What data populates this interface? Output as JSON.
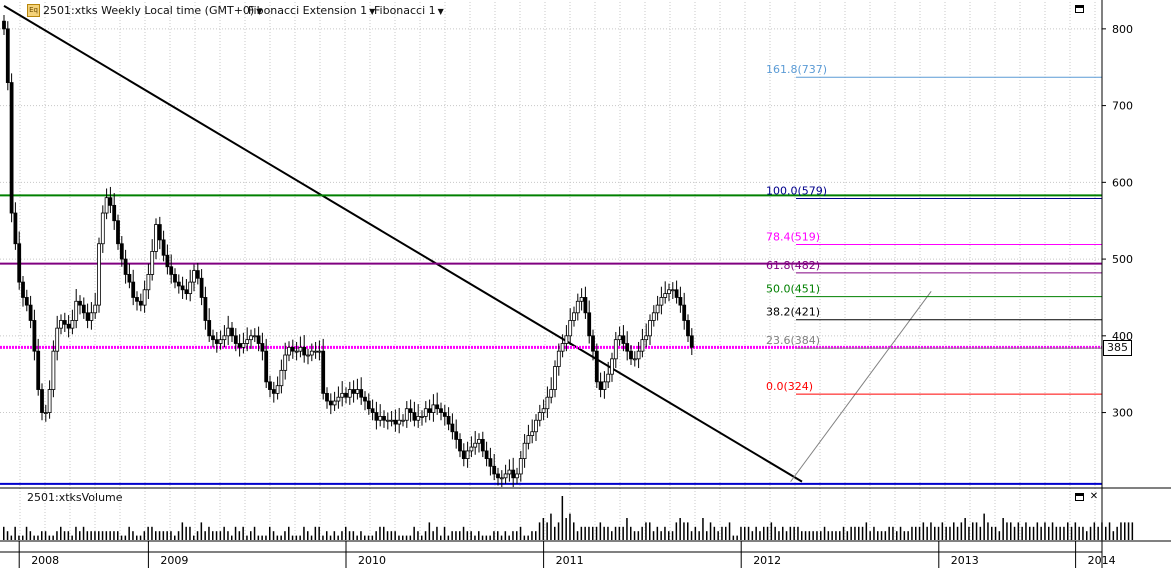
{
  "header": {
    "symbol_icon": "chart-badge-icon",
    "symbol_icon_glyph": "Eq",
    "title": "2501:xtks Weekly Local time (GMT+0)",
    "study_1": "Fibonacci Extension 1",
    "study_2": "Fibonacci 1"
  },
  "volume_panel": {
    "title": "2501:xtksVolume",
    "weekly_volume_relative": [
      0.3,
      0.2,
      0.1,
      0.3,
      0.1,
      0.1,
      0.3,
      0.2,
      0.1,
      0.1,
      0.2,
      0.2,
      0.1,
      0.1,
      0.2,
      0.3,
      0.2,
      0.2,
      0.1,
      0.3,
      0.2,
      0.3,
      0.2,
      0.2,
      0.2,
      0.2,
      0.2,
      0.2,
      0.2,
      0.2,
      0.2,
      0.1,
      0.1,
      0.3,
      0.2,
      0.1,
      0.1,
      0.2,
      0.3,
      0.3,
      0.2,
      0.2,
      0.2,
      0.2,
      0.2,
      0.1,
      0.2,
      0.4,
      0.3,
      0.3,
      0.1,
      0.2,
      0.4,
      0.2,
      0.3,
      0.2,
      0.2,
      0.2,
      0.3,
      0.2,
      0.1,
      0.3,
      0.2,
      0.3,
      0.1,
      0.2,
      0.3,
      0.1,
      0.1,
      0.1,
      0.3,
      0.2,
      0.1,
      0.1,
      0.2,
      0.3,
      0.1,
      0.1,
      0.1,
      0.3,
      0.2,
      0.1,
      0.3,
      0.3,
      0.1,
      0.2,
      0.1,
      0.2,
      0.1,
      0.2,
      0.3,
      0.2,
      0.2,
      0.1,
      0.2,
      0.1,
      0.1,
      0.1,
      0.2,
      0.3,
      0.3,
      0.2,
      0.2,
      0.2,
      0.1,
      0.1,
      0.1,
      0.1,
      0.3,
      0.2,
      0.1,
      0.2,
      0.4,
      0.2,
      0.3,
      0.1,
      0.3,
      0.1,
      0.2,
      0.2,
      0.2,
      0.3,
      0.2,
      0.2,
      0.1,
      0.2,
      0.1,
      0.1,
      0.1,
      0.2,
      0.2,
      0.1,
      0.2,
      0.1,
      0.2,
      0.2,
      0.3,
      0.1,
      0.1,
      0.2,
      0.2,
      0.4,
      0.5,
      0.4,
      0.6,
      0.3,
      0.4,
      1.0,
      0.5,
      0.6,
      0.4,
      0.2,
      0.3,
      0.3,
      0.3,
      0.3,
      0.3,
      0.4,
      0.3,
      0.3,
      0.2,
      0.3,
      0.3,
      0.3,
      0.5,
      0.3,
      0.2,
      0.2,
      0.3,
      0.4,
      0.4,
      0.2,
      0.3,
      0.2,
      0.3,
      0.2,
      0.2,
      0.4,
      0.5,
      0.4,
      0.4,
      0.2,
      0.3,
      0.2,
      0.5,
      0.2,
      0.4,
      0.3,
      0.2,
      0.3,
      0.3,
      0.4,
      0.1,
      0.1,
      0.3,
      0.3,
      0.3,
      0.2,
      0.3,
      0.2,
      0.3,
      0.3,
      0.4,
      0.3,
      0.2,
      0.3,
      0.2,
      0.3,
      0.3,
      0.3,
      0.2,
      0.2,
      0.2,
      0.2,
      0.2,
      0.2,
      0.3,
      0.2,
      0.2,
      0.2,
      0.2,
      0.3,
      0.2,
      0.3,
      0.3,
      0.3,
      0.3,
      0.4,
      0.2,
      0.3,
      0.2,
      0.2,
      0.2,
      0.3,
      0.3,
      0.2,
      0.3,
      0.2,
      0.2,
      0.3,
      0.3,
      0.3,
      0.4,
      0.3,
      0.4,
      0.3,
      0.3,
      0.4,
      0.3,
      0.3,
      0.4,
      0.3,
      0.4,
      0.5,
      0.3,
      0.4,
      0.4,
      0.3,
      0.6,
      0.4,
      0.3,
      0.3,
      0.2,
      0.5,
      0.4,
      0.4,
      0.3,
      0.4,
      0.3,
      0.4,
      0.3,
      0.3,
      0.4,
      0.3,
      0.4,
      0.3,
      0.4,
      0.3,
      0.3,
      0.3,
      0.4,
      0.3,
      0.4,
      0.3,
      0.3,
      0.2,
      0.3,
      0.4,
      0.3,
      0.4,
      0.3,
      0.4,
      0.2,
      0.3,
      0.4,
      0.4,
      0.4,
      0.4
    ]
  },
  "chart_data": {
    "type": "candlestick",
    "timeframe": "Weekly",
    "x_tick_labels": [
      "2008",
      "2009",
      "2010",
      "2011",
      "2012",
      "2013",
      "2014"
    ],
    "y_tick_labels": [
      "300",
      "400",
      "500",
      "600",
      "700",
      "800"
    ],
    "ylim": [
      203,
      835
    ],
    "grid": true,
    "last_price": "385",
    "series": [
      {
        "values": [
          800,
          730,
          560,
          520,
          470,
          450,
          440,
          420,
          380,
          330,
          300,
          300,
          330,
          380,
          410,
          420,
          415,
          410,
          420,
          445,
          440,
          430,
          420,
          430,
          440,
          520,
          560,
          580,
          570,
          550,
          520,
          500,
          480,
          470,
          450,
          445,
          440,
          460,
          480,
          510,
          545,
          525,
          505,
          490,
          480,
          470,
          465,
          460,
          455,
          470,
          485,
          475,
          450,
          420,
          400,
          395,
          390,
          395,
          400,
          410,
          400,
          390,
          385,
          390,
          395,
          400,
          400,
          390,
          380,
          340,
          330,
          325,
          335,
          355,
          375,
          385,
          380,
          380,
          385,
          375,
          375,
          380,
          380,
          380,
          325,
          315,
          310,
          315,
          320,
          325,
          320,
          330,
          325,
          330,
          320,
          315,
          305,
          300,
          290,
          295,
          290,
          290,
          290,
          285,
          290,
          290,
          305,
          300,
          290,
          295,
          295,
          305,
          300,
          310,
          305,
          300,
          295,
          285,
          275,
          265,
          250,
          240,
          250,
          255,
          260,
          265,
          250,
          240,
          230,
          220,
          215,
          215,
          220,
          225,
          215,
          220,
          240,
          260,
          270,
          275,
          290,
          300,
          305,
          320,
          330,
          360,
          380,
          390,
          400,
          420,
          430,
          445,
          450,
          430,
          400,
          380,
          340,
          330,
          340,
          350,
          370,
          395,
          400,
          390,
          380,
          370,
          370,
          380,
          395,
          400,
          420,
          430,
          440,
          450,
          455,
          460,
          460,
          450,
          440,
          420,
          400,
          385
        ]
      }
    ],
    "lines": [
      {
        "label": "trendline",
        "color": "#000000",
        "from": {
          "bar": 0,
          "price": 830
        },
        "to": {
          "bar": 210,
          "price": 210
        }
      },
      {
        "label": "resistance",
        "color": "#008000",
        "price": 583
      },
      {
        "label": "resistance",
        "color": "#800080",
        "price": 494
      },
      {
        "label": "support",
        "color": "#ff00ff",
        "price": 385
      },
      {
        "label": "support",
        "color": "#0000cc",
        "price": 207
      }
    ],
    "fibonacci_levels": [
      {
        "label": "161.8(737)",
        "price": 737,
        "color": "#5b9bd5"
      },
      {
        "label": "100.0(579)",
        "price": 579,
        "color": "#00008b"
      },
      {
        "label": "78.4(519)",
        "price": 519,
        "color": "#ff00ff"
      },
      {
        "label": "61.8(482)",
        "price": 482,
        "color": "#800080"
      },
      {
        "label": "50.0(451)",
        "price": 451,
        "color": "#008000"
      },
      {
        "label": "38.2(421)",
        "price": 421,
        "color": "#000000"
      },
      {
        "label": "23.6(384)",
        "price": 384,
        "color": "#808080"
      },
      {
        "label": "0.0(324)",
        "price": 324,
        "color": "#ff0000"
      }
    ]
  }
}
